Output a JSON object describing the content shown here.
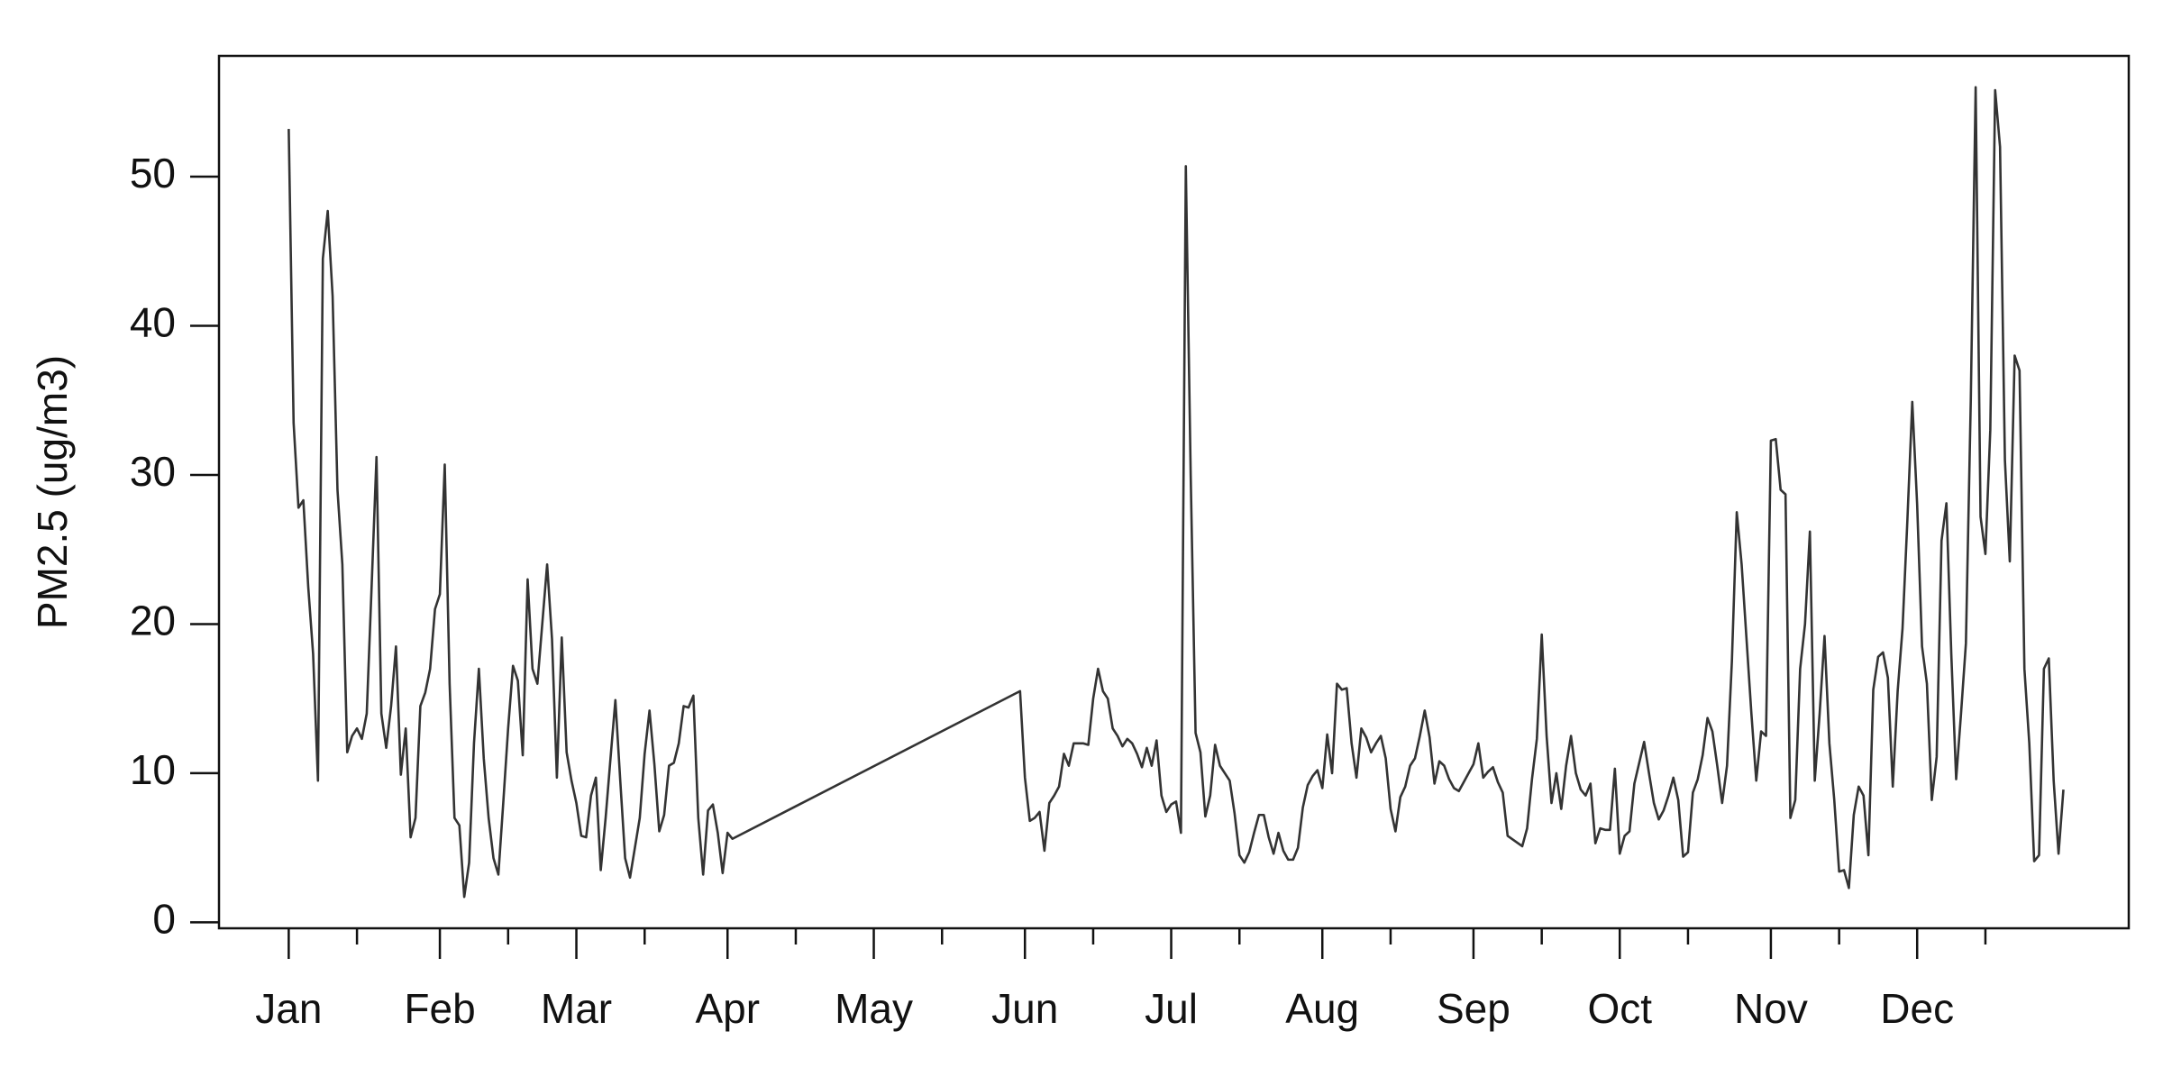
{
  "chart_data": {
    "type": "line",
    "y_label": "PM2.5 (ug/m3)",
    "color": "#333333",
    "xlim": [
      -13.3,
      378.4
    ],
    "ylim": [
      -0.4,
      58.1
    ],
    "yticks": [
      0,
      10,
      20,
      30,
      40,
      50
    ],
    "xticks": [
      {
        "value": 1,
        "label": "Jan"
      },
      {
        "value": 32,
        "label": "Feb"
      },
      {
        "value": 60,
        "label": "Mar"
      },
      {
        "value": 91,
        "label": "Apr"
      },
      {
        "value": 121,
        "label": "May"
      },
      {
        "value": 152,
        "label": "Jun"
      },
      {
        "value": 182,
        "label": "Jul"
      },
      {
        "value": 213,
        "label": "Aug"
      },
      {
        "value": 244,
        "label": "Sep"
      },
      {
        "value": 274,
        "label": "Oct"
      },
      {
        "value": 305,
        "label": "Nov"
      },
      {
        "value": 335,
        "label": "Dec"
      }
    ],
    "xminorticks": [
      15,
      46,
      74,
      105,
      135,
      166,
      196,
      227,
      258,
      288,
      319,
      349
    ],
    "x": [
      1,
      2,
      3,
      4,
      5,
      6,
      7,
      8,
      9,
      10,
      11,
      12,
      13,
      14,
      15,
      16,
      17,
      18,
      19,
      20,
      21,
      22,
      23,
      24,
      25,
      26,
      27,
      28,
      29,
      30,
      31,
      32,
      33,
      34,
      35,
      36,
      37,
      38,
      39,
      40,
      41,
      42,
      43,
      44,
      45,
      46,
      47,
      48,
      49,
      50,
      51,
      52,
      53,
      54,
      55,
      56,
      57,
      58,
      59,
      60,
      61,
      62,
      63,
      64,
      65,
      66,
      67,
      68,
      69,
      70,
      71,
      72,
      73,
      74,
      75,
      76,
      77,
      78,
      79,
      80,
      81,
      82,
      83,
      84,
      85,
      86,
      87,
      88,
      89,
      90,
      91,
      92,
      151,
      152,
      153,
      154,
      155,
      156,
      157,
      158,
      159,
      160,
      161,
      162,
      163,
      164,
      165,
      166,
      167,
      168,
      169,
      170,
      171,
      172,
      173,
      174,
      175,
      176,
      177,
      178,
      179,
      180,
      181,
      182,
      183,
      184,
      185,
      186,
      187,
      188,
      189,
      190,
      191,
      192,
      193,
      194,
      195,
      196,
      197,
      198,
      199,
      200,
      201,
      202,
      203,
      204,
      205,
      206,
      207,
      208,
      209,
      210,
      211,
      212,
      213,
      214,
      215,
      216,
      217,
      218,
      219,
      220,
      221,
      222,
      223,
      224,
      225,
      226,
      227,
      228,
      229,
      230,
      231,
      232,
      233,
      234,
      235,
      236,
      237,
      238,
      239,
      240,
      241,
      242,
      243,
      244,
      245,
      246,
      247,
      248,
      249,
      250,
      251,
      254,
      255,
      256,
      257,
      258,
      259,
      260,
      261,
      262,
      263,
      264,
      265,
      266,
      267,
      268,
      269,
      270,
      271,
      272,
      273,
      274,
      275,
      276,
      277,
      278,
      279,
      280,
      281,
      282,
      283,
      284,
      285,
      286,
      287,
      288,
      289,
      290,
      291,
      292,
      293,
      294,
      295,
      296,
      297,
      298,
      299,
      300,
      301,
      302,
      303,
      304,
      305,
      306,
      307,
      308,
      309,
      310,
      311,
      312,
      313,
      314,
      315,
      316,
      317,
      318,
      319,
      320,
      321,
      322,
      323,
      324,
      325,
      326,
      327,
      328,
      329,
      330,
      331,
      332,
      333,
      334,
      335,
      336,
      337,
      338,
      339,
      340,
      341,
      342,
      343,
      344,
      345,
      346,
      347,
      348,
      349,
      350,
      351,
      352,
      353,
      354,
      355,
      356,
      357,
      358,
      359,
      360,
      361,
      362,
      363,
      364,
      365
    ],
    "values": [
      53.2,
      33.5,
      27.8,
      28.3,
      22.5,
      18,
      9.5,
      44.5,
      47.7,
      42,
      29,
      24,
      11.4,
      12.5,
      13,
      12.3,
      14,
      22.5,
      31.2,
      14,
      11.7,
      14.5,
      18.5,
      9.9,
      13,
      5.7,
      7,
      14.5,
      15.4,
      17,
      21,
      22,
      30.7,
      16,
      7,
      6.5,
      1.7,
      4,
      12,
      17,
      11,
      7,
      4.3,
      3.2,
      8,
      13,
      17.2,
      16.2,
      11.2,
      23,
      17,
      16,
      20,
      24,
      19,
      9.7,
      19.1,
      11.4,
      9.5,
      8,
      5.8,
      5.7,
      8.5,
      9.7,
      3.5,
      7,
      11,
      14.9,
      9.5,
      4.3,
      3,
      5,
      7,
      11.3,
      14.2,
      10.6,
      6.1,
      7.2,
      10.5,
      10.7,
      12,
      14.5,
      14.4,
      15.2,
      7,
      3.2,
      7.5,
      7.9,
      6,
      3.3,
      6,
      5.6,
      15.5,
      9.7,
      6.8,
      7,
      7.4,
      4.8,
      8,
      8.5,
      9.1,
      11.3,
      10.5,
      12,
      12,
      12,
      11.9,
      15,
      17,
      15.5,
      15,
      13,
      12.5,
      11.8,
      12.3,
      12,
      11.3,
      10.4,
      11.7,
      10.5,
      12.2,
      8.5,
      7.4,
      7.9,
      8.1,
      6,
      50.7,
      30,
      12.7,
      11.4,
      7.1,
      8.5,
      11.9,
      10.5,
      10,
      9.5,
      7.3,
      4.5,
      4,
      4.7,
      6,
      7.2,
      7.2,
      5.7,
      4.6,
      6,
      4.8,
      4.2,
      4.2,
      5,
      7.7,
      9.2,
      9.8,
      10.2,
      9,
      12.6,
      10,
      16,
      15.6,
      15.7,
      12,
      9.7,
      13,
      12.4,
      11.4,
      12,
      12.5,
      11,
      7.6,
      6.1,
      8.4,
      9.1,
      10.5,
      11,
      12.5,
      14.2,
      12.4,
      9.3,
      10.8,
      10.5,
      9.6,
      9,
      8.8,
      9.4,
      10,
      10.6,
      12,
      9.7,
      10.1,
      10.4,
      9.4,
      8.7,
      5.8,
      5.1,
      6.3,
      9.6,
      12.3,
      19.3,
      12.5,
      8,
      10,
      7.6,
      10.5,
      12.5,
      10,
      8.9,
      8.5,
      9.3,
      5.3,
      6.3,
      6.2,
      6.2,
      10.3,
      4.6,
      5.8,
      6.1,
      9.3,
      10.7,
      12.1,
      10,
      8,
      6.9,
      7.5,
      8.5,
      9.7,
      8.2,
      4.4,
      4.7,
      8.7,
      9.6,
      11.2,
      13.7,
      12.8,
      10.5,
      8,
      10.5,
      17.5,
      27.5,
      24,
      19,
      14,
      9.5,
      12.8,
      12.5,
      32.3,
      32.4,
      29,
      28.7,
      7,
      8.2,
      17,
      20,
      26.2,
      9.5,
      14,
      19.2,
      12,
      8.2,
      3.4,
      3.5,
      2.3,
      7.2,
      9.1,
      8.5,
      4.5,
      15.6,
      17.8,
      18.1,
      16.4,
      9.1,
      15.5,
      19.7,
      27,
      34.9,
      28,
      18.5,
      16,
      8.2,
      11.1,
      25.6,
      28.1,
      18,
      9.6,
      14,
      18.7,
      35,
      56,
      27.2,
      24.7,
      33,
      55.8,
      52,
      31,
      24.2,
      38,
      37,
      17,
      12,
      4.1,
      4.5,
      17,
      17.7,
      9.5,
      4.6,
      8.9
    ]
  }
}
